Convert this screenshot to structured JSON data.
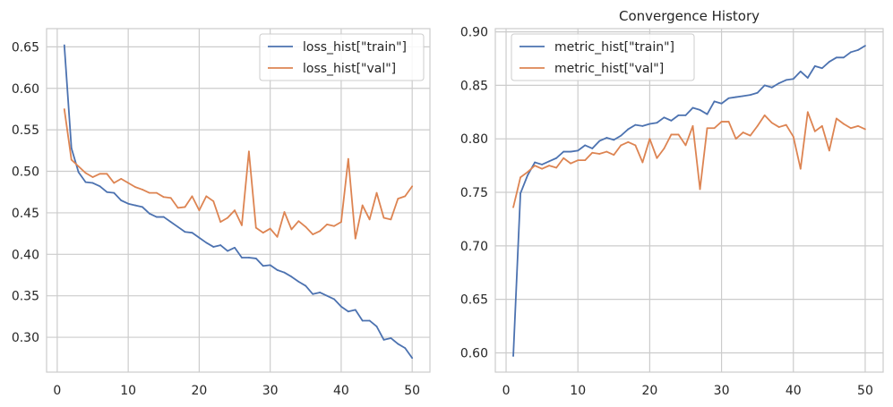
{
  "chart_data": [
    {
      "type": "line",
      "title": "",
      "xlabel": "",
      "ylabel": "",
      "xlim": [
        -1.5,
        52.5
      ],
      "ylim": [
        0.258,
        0.672
      ],
      "xticks": [
        0,
        10,
        20,
        30,
        40,
        50
      ],
      "xtick_labels": [
        "0",
        "10",
        "20",
        "30",
        "40",
        "50"
      ],
      "yticks": [
        0.3,
        0.35,
        0.4,
        0.45,
        0.5,
        0.55,
        0.6,
        0.65
      ],
      "ytick_labels": [
        "0.30",
        "0.35",
        "0.40",
        "0.45",
        "0.50",
        "0.55",
        "0.60",
        "0.65"
      ],
      "grid": true,
      "legend_position": "top-right",
      "x": [
        1,
        2,
        3,
        4,
        5,
        6,
        7,
        8,
        9,
        10,
        11,
        12,
        13,
        14,
        15,
        16,
        17,
        18,
        19,
        20,
        21,
        22,
        23,
        24,
        25,
        26,
        27,
        28,
        29,
        30,
        31,
        32,
        33,
        34,
        35,
        36,
        37,
        38,
        39,
        40,
        41,
        42,
        43,
        44,
        45,
        46,
        47,
        48,
        49,
        50
      ],
      "series": [
        {
          "name": "loss_hist[\"train\"]",
          "color": "#4c72b0",
          "values": [
            0.652,
            0.528,
            0.499,
            0.487,
            0.486,
            0.482,
            0.475,
            0.474,
            0.465,
            0.461,
            0.459,
            0.457,
            0.449,
            0.445,
            0.445,
            0.439,
            0.433,
            0.427,
            0.426,
            0.42,
            0.414,
            0.409,
            0.411,
            0.404,
            0.408,
            0.396,
            0.396,
            0.395,
            0.386,
            0.387,
            0.381,
            0.378,
            0.373,
            0.367,
            0.362,
            0.352,
            0.354,
            0.35,
            0.346,
            0.337,
            0.331,
            0.333,
            0.32,
            0.32,
            0.313,
            0.297,
            0.299,
            0.292,
            0.287,
            0.275
          ]
        },
        {
          "name": "loss_hist[\"val\"]",
          "color": "#dd8452",
          "values": [
            0.575,
            0.514,
            0.506,
            0.498,
            0.493,
            0.497,
            0.497,
            0.486,
            0.491,
            0.486,
            0.481,
            0.478,
            0.474,
            0.474,
            0.469,
            0.468,
            0.456,
            0.457,
            0.47,
            0.453,
            0.47,
            0.464,
            0.439,
            0.444,
            0.453,
            0.435,
            0.524,
            0.432,
            0.426,
            0.431,
            0.421,
            0.451,
            0.43,
            0.44,
            0.433,
            0.424,
            0.428,
            0.436,
            0.434,
            0.439,
            0.515,
            0.419,
            0.459,
            0.442,
            0.474,
            0.444,
            0.442,
            0.467,
            0.47,
            0.482
          ]
        }
      ]
    },
    {
      "type": "line",
      "title": "Convergence History",
      "xlabel": "",
      "ylabel": "",
      "xlim": [
        -1.5,
        52.5
      ],
      "ylim": [
        0.582,
        0.903
      ],
      "xticks": [
        0,
        10,
        20,
        30,
        40,
        50
      ],
      "xtick_labels": [
        "0",
        "10",
        "20",
        "30",
        "40",
        "50"
      ],
      "yticks": [
        0.6,
        0.65,
        0.7,
        0.75,
        0.8,
        0.85,
        0.9
      ],
      "ytick_labels": [
        "0.60",
        "0.65",
        "0.70",
        "0.75",
        "0.80",
        "0.85",
        "0.90"
      ],
      "grid": true,
      "legend_position": "top-left",
      "x": [
        1,
        2,
        3,
        4,
        5,
        6,
        7,
        8,
        9,
        10,
        11,
        12,
        13,
        14,
        15,
        16,
        17,
        18,
        19,
        20,
        21,
        22,
        23,
        24,
        25,
        26,
        27,
        28,
        29,
        30,
        31,
        32,
        33,
        34,
        35,
        36,
        37,
        38,
        39,
        40,
        41,
        42,
        43,
        44,
        45,
        46,
        47,
        48,
        49,
        50
      ],
      "series": [
        {
          "name": "metric_hist[\"train\"]",
          "color": "#4c72b0",
          "values": [
            0.597,
            0.749,
            0.766,
            0.778,
            0.776,
            0.779,
            0.782,
            0.788,
            0.788,
            0.789,
            0.794,
            0.791,
            0.798,
            0.801,
            0.799,
            0.803,
            0.809,
            0.813,
            0.812,
            0.814,
            0.815,
            0.82,
            0.817,
            0.822,
            0.822,
            0.829,
            0.827,
            0.823,
            0.835,
            0.833,
            0.838,
            0.839,
            0.84,
            0.841,
            0.843,
            0.85,
            0.848,
            0.852,
            0.855,
            0.856,
            0.863,
            0.857,
            0.868,
            0.866,
            0.872,
            0.876,
            0.876,
            0.881,
            0.883,
            0.887
          ]
        },
        {
          "name": "metric_hist[\"val\"]",
          "color": "#dd8452",
          "values": [
            0.736,
            0.764,
            0.769,
            0.775,
            0.772,
            0.775,
            0.773,
            0.782,
            0.777,
            0.78,
            0.78,
            0.787,
            0.786,
            0.788,
            0.785,
            0.794,
            0.797,
            0.794,
            0.778,
            0.8,
            0.782,
            0.791,
            0.804,
            0.804,
            0.794,
            0.812,
            0.753,
            0.81,
            0.81,
            0.816,
            0.816,
            0.8,
            0.806,
            0.803,
            0.812,
            0.822,
            0.815,
            0.811,
            0.813,
            0.802,
            0.772,
            0.825,
            0.807,
            0.812,
            0.789,
            0.819,
            0.814,
            0.81,
            0.812,
            0.809
          ]
        }
      ]
    }
  ]
}
